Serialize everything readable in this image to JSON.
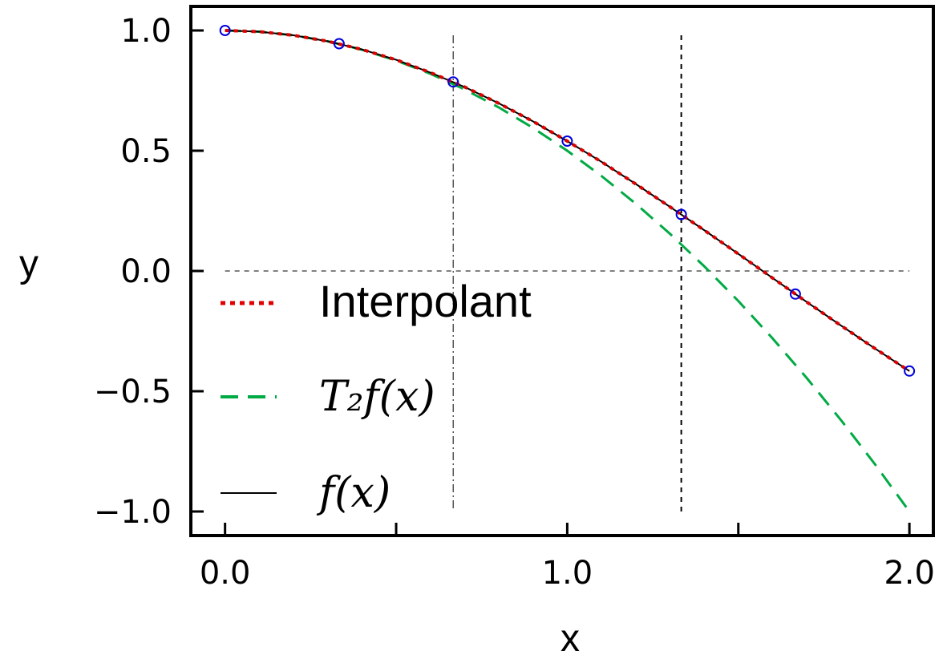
{
  "chart_data": {
    "type": "line",
    "xlabel": "x",
    "ylabel": "y",
    "xlim": [
      -0.1,
      2.07
    ],
    "ylim": [
      -1.1,
      1.1
    ],
    "xticks": [
      {
        "value": 0.0,
        "label": "0.0"
      },
      {
        "value": 0.5,
        "label": ""
      },
      {
        "value": 1.0,
        "label": "1.0"
      },
      {
        "value": 1.5,
        "label": ""
      },
      {
        "value": 2.0,
        "label": "2.0"
      }
    ],
    "yticks": [
      {
        "value": 1.0,
        "label": "1.0"
      },
      {
        "value": 0.5,
        "label": "0.5"
      },
      {
        "value": 0.0,
        "label": "0.0"
      },
      {
        "value": -0.5,
        "label": "−0.5"
      },
      {
        "value": -1.0,
        "label": "−1.0"
      }
    ],
    "grid": false,
    "legend_position": "lower-left",
    "reference_lines": {
      "horizontal_y": 0.0,
      "vertical_x": [
        0.6667,
        1.3333
      ]
    },
    "series": [
      {
        "name": "Interpolant",
        "style": "dotted",
        "color": "#e00000",
        "x": [
          0,
          0.1,
          0.2,
          0.3,
          0.4,
          0.5,
          0.6,
          0.7,
          0.8,
          0.9,
          1.0,
          1.1,
          1.2,
          1.3,
          1.4,
          1.5,
          1.6,
          1.7,
          1.8,
          1.9,
          2.0
        ],
        "y": [
          1.0,
          0.995,
          0.98,
          0.955,
          0.921,
          0.878,
          0.825,
          0.765,
          0.697,
          0.622,
          0.54,
          0.454,
          0.362,
          0.267,
          0.17,
          0.071,
          -0.029,
          -0.129,
          -0.227,
          -0.323,
          -0.416
        ]
      },
      {
        "name": "T₂f(x)",
        "style": "dashed",
        "color": "#00aa44",
        "x": [
          0,
          0.1,
          0.2,
          0.3,
          0.4,
          0.5,
          0.6,
          0.7,
          0.8,
          0.9,
          1.0,
          1.1,
          1.2,
          1.3,
          1.4,
          1.5,
          1.6,
          1.7,
          1.8,
          1.9,
          2.0
        ],
        "y": [
          1.0,
          0.995,
          0.98,
          0.955,
          0.92,
          0.875,
          0.82,
          0.755,
          0.68,
          0.595,
          0.5,
          0.395,
          0.28,
          0.155,
          0.02,
          -0.125,
          -0.28,
          -0.445,
          -0.62,
          -0.805,
          -1.0
        ]
      },
      {
        "name": "f(x)",
        "style": "solid",
        "color": "#000000",
        "x": [
          0,
          0.1,
          0.2,
          0.3,
          0.4,
          0.5,
          0.6,
          0.7,
          0.8,
          0.9,
          1.0,
          1.1,
          1.2,
          1.3,
          1.4,
          1.5,
          1.6,
          1.7,
          1.8,
          1.9,
          2.0
        ],
        "y": [
          1.0,
          0.995,
          0.98,
          0.955,
          0.921,
          0.878,
          0.825,
          0.765,
          0.697,
          0.622,
          0.54,
          0.454,
          0.362,
          0.267,
          0.17,
          0.071,
          -0.029,
          -0.129,
          -0.227,
          -0.323,
          -0.416
        ]
      }
    ],
    "markers": {
      "style": "open-circle",
      "color": "#0000dd",
      "x": [
        0.0,
        0.3333,
        0.6667,
        1.0,
        1.3333,
        1.6667,
        2.0
      ],
      "y": [
        1.0,
        0.945,
        0.786,
        0.54,
        0.235,
        -0.096,
        -0.416
      ]
    }
  }
}
